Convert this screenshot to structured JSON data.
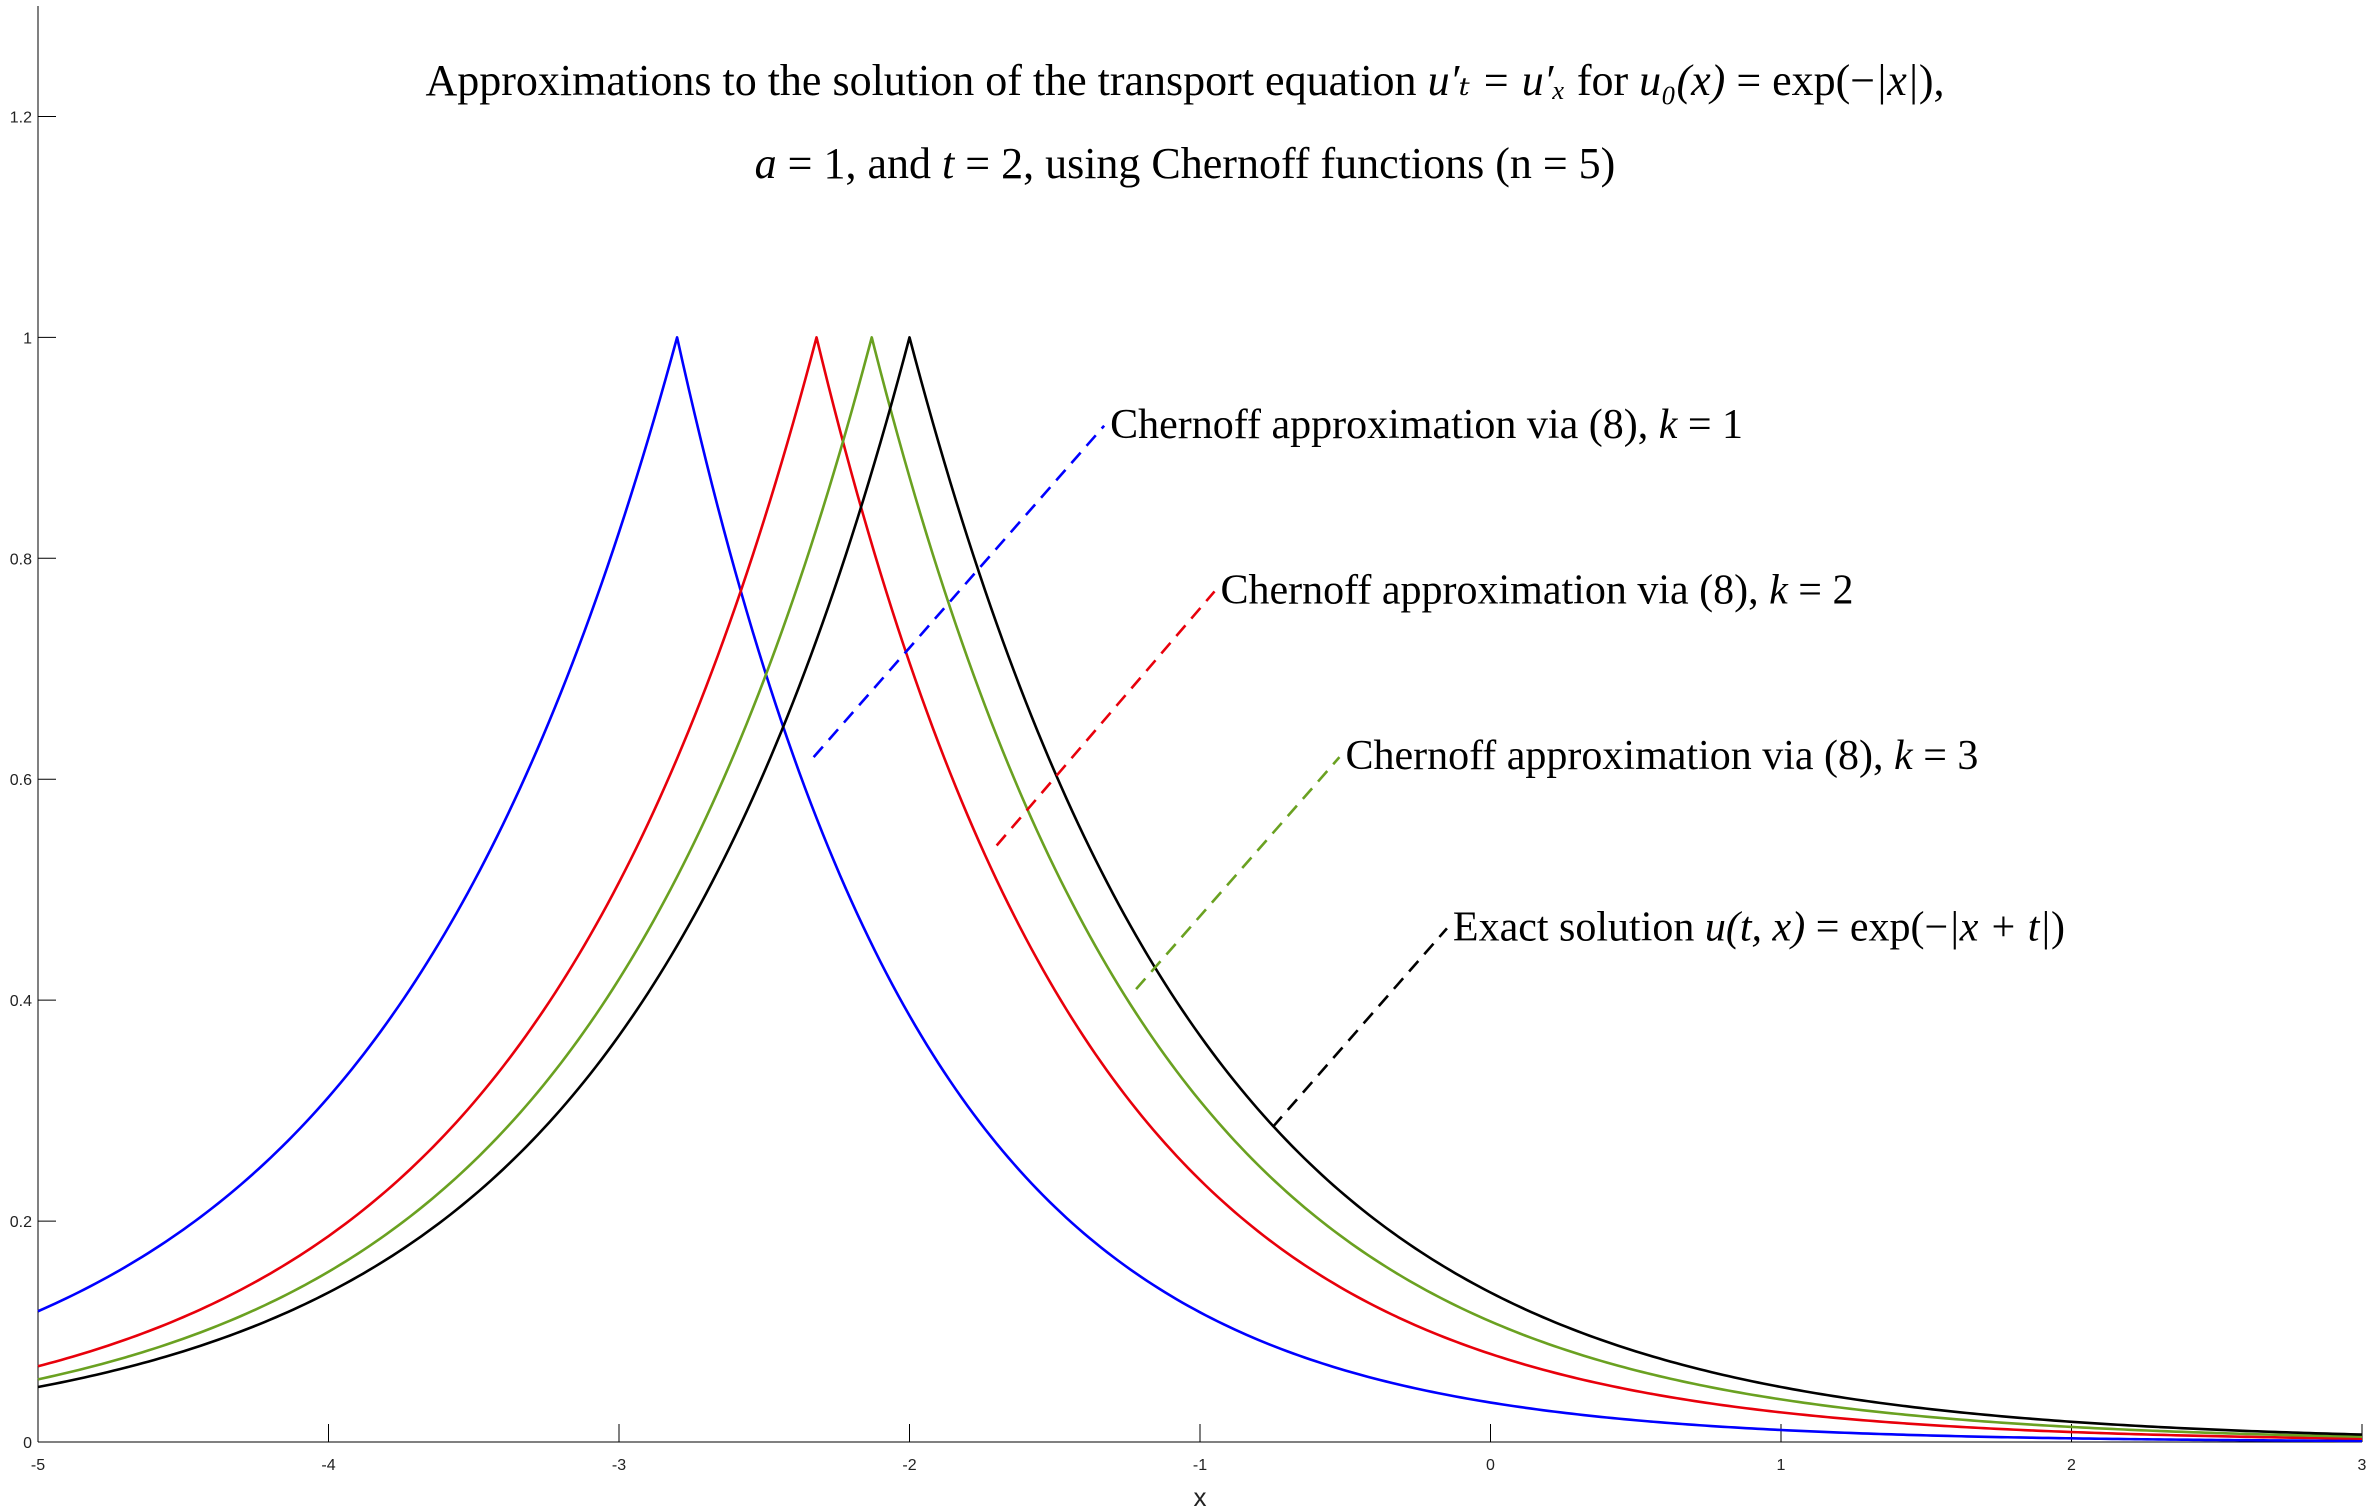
{
  "chart_data": {
    "type": "line",
    "title_lines": [
      {
        "segments": [
          {
            "text": "Approximations to the solution of the transport equation ",
            "math": false
          },
          {
            "text": "u′ₜ = u′ₓ",
            "math": true
          },
          {
            "text": " for ",
            "math": false
          },
          {
            "text": "u₀(x)",
            "math": true
          },
          {
            "text": " = exp(−",
            "math": false
          },
          {
            "text": "|x|",
            "math": true
          },
          {
            "text": "),",
            "math": false
          }
        ]
      },
      {
        "segments": [
          {
            "text": "a",
            "math": true
          },
          {
            "text": " = 1, and ",
            "math": false
          },
          {
            "text": "t",
            "math": true
          },
          {
            "text": " = 2, using Chernoff functions (n = 5)",
            "math": false
          }
        ]
      }
    ],
    "xlabel": "x",
    "ylabel": "",
    "xlim": [
      -5,
      3
    ],
    "ylim": [
      0,
      1.3
    ],
    "x_ticks": [
      -5,
      -4,
      -3,
      -2,
      -1,
      0,
      1,
      2,
      3
    ],
    "x_tick_labels": [
      "-5",
      "-4",
      "-3",
      "-2",
      "-1",
      "0",
      "1",
      "2",
      "3"
    ],
    "y_ticks": [
      0,
      0.2,
      0.4,
      0.6,
      0.8,
      1,
      1.2
    ],
    "y_tick_labels": [
      "0",
      "0.2",
      "0.4",
      "0.6",
      "0.8",
      "1",
      "1.2"
    ],
    "grid": false,
    "x_range": {
      "min": -5,
      "max": 3,
      "step": 0.02
    },
    "series": [
      {
        "id": "k1",
        "color": "#0000ff",
        "peak_x": -2.8,
        "decay_left": 0.97,
        "decay_right": 1.19,
        "label": {
          "segments": [
            {
              "text": "Chernoff approximation via (8), ",
              "math": false
            },
            {
              "text": "k",
              "math": true
            },
            {
              "text": " = 1",
              "math": false
            }
          ]
        },
        "leader": {
          "from": [
            -2.33,
            0.62
          ],
          "to": [
            -1.33,
            0.92
          ]
        }
      },
      {
        "id": "k2",
        "color": "#e8000b",
        "peak_x": -2.32,
        "decay_left": 1.0,
        "decay_right": 1.09,
        "label": {
          "segments": [
            {
              "text": "Chernoff approximation via (8), ",
              "math": false
            },
            {
              "text": "k",
              "math": true
            },
            {
              "text": " = 2",
              "math": false
            }
          ]
        },
        "leader": {
          "from": [
            -1.7,
            0.54
          ],
          "to": [
            -0.95,
            0.77
          ]
        }
      },
      {
        "id": "k3",
        "color": "#6aa121",
        "peak_x": -2.13,
        "decay_left": 1.0,
        "decay_right": 1.04,
        "label": {
          "segments": [
            {
              "text": "Chernoff approximation via (8), ",
              "math": false
            },
            {
              "text": "k",
              "math": true
            },
            {
              "text": " = 3",
              "math": false
            }
          ]
        },
        "leader": {
          "from": [
            -1.22,
            0.41
          ],
          "to": [
            -0.52,
            0.62
          ]
        }
      },
      {
        "id": "exact",
        "color": "#000000",
        "peak_x": -2.0,
        "decay_left": 1.0,
        "decay_right": 1.0,
        "label": {
          "segments": [
            {
              "text": "Exact solution ",
              "math": false
            },
            {
              "text": "u(t, x)",
              "math": true
            },
            {
              "text": " = exp(−",
              "math": false
            },
            {
              "text": "|x + t|",
              "math": true
            },
            {
              "text": ")",
              "math": false
            }
          ]
        },
        "leader": {
          "from": [
            -0.75,
            0.285
          ],
          "to": [
            -0.15,
            0.465
          ]
        }
      }
    ]
  }
}
